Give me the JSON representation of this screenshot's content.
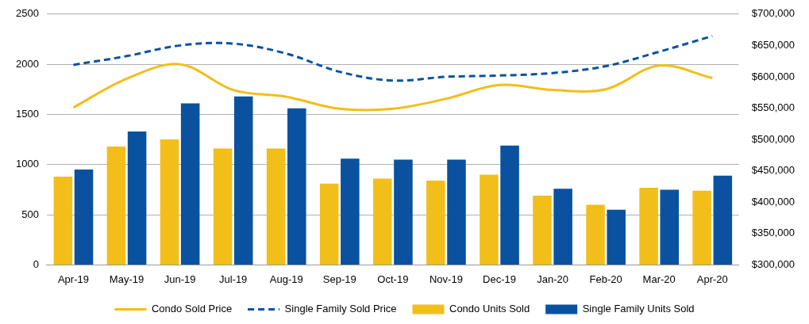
{
  "chart_data": {
    "type": "bar",
    "categories": [
      "Apr-19",
      "May-19",
      "Jun-19",
      "Jul-19",
      "Aug-19",
      "Sep-19",
      "Oct-19",
      "Nov-19",
      "Dec-19",
      "Jan-20",
      "Feb-20",
      "Mar-20",
      "Apr-20"
    ],
    "series": [
      {
        "name": "Condo Units Sold",
        "type": "bar",
        "color": "#f2be1a",
        "values": [
          880,
          1180,
          1250,
          1160,
          1160,
          810,
          860,
          840,
          900,
          690,
          600,
          770,
          740
        ]
      },
      {
        "name": "Single Family Units Sold",
        "type": "bar",
        "color": "#0a52a0",
        "values": [
          950,
          1330,
          1610,
          1680,
          1560,
          1060,
          1050,
          1050,
          1190,
          760,
          550,
          750,
          890
        ]
      },
      {
        "name": "Condo Sold Price",
        "type": "line",
        "axis": "y2",
        "color": "#f2be1a",
        "line_style": "solid",
        "marker": "none",
        "values": [
          551000,
          597000,
          620000,
          579000,
          568000,
          549000,
          549000,
          565000,
          587000,
          579000,
          580000,
          618000,
          598000
        ]
      },
      {
        "name": "Single Family Sold Price",
        "type": "line",
        "axis": "y2",
        "color": "#0a52a0",
        "line_style": "dashed",
        "marker": "none",
        "values": [
          619000,
          633000,
          650000,
          653000,
          637000,
          608000,
          594000,
          600000,
          602000,
          606000,
          617000,
          640000,
          665000
        ]
      }
    ],
    "ylim": [
      0,
      2500
    ],
    "yticks": [
      0,
      500,
      1000,
      1500,
      2000,
      2500
    ],
    "y2lim": [
      300000,
      700000
    ],
    "y2ticks": [
      {
        "value": 300000,
        "label": "$300,000"
      },
      {
        "value": 350000,
        "label": "$350,000"
      },
      {
        "value": 400000,
        "label": "$400,000"
      },
      {
        "value": 450000,
        "label": "$450,000"
      },
      {
        "value": 500000,
        "label": "$500,000"
      },
      {
        "value": 550000,
        "label": "$550,000"
      },
      {
        "value": 600000,
        "label": "$600,000"
      },
      {
        "value": 650000,
        "label": "$650,000"
      },
      {
        "value": 700000,
        "label": "$700,000"
      }
    ],
    "grid": true,
    "legend": "bottom"
  }
}
